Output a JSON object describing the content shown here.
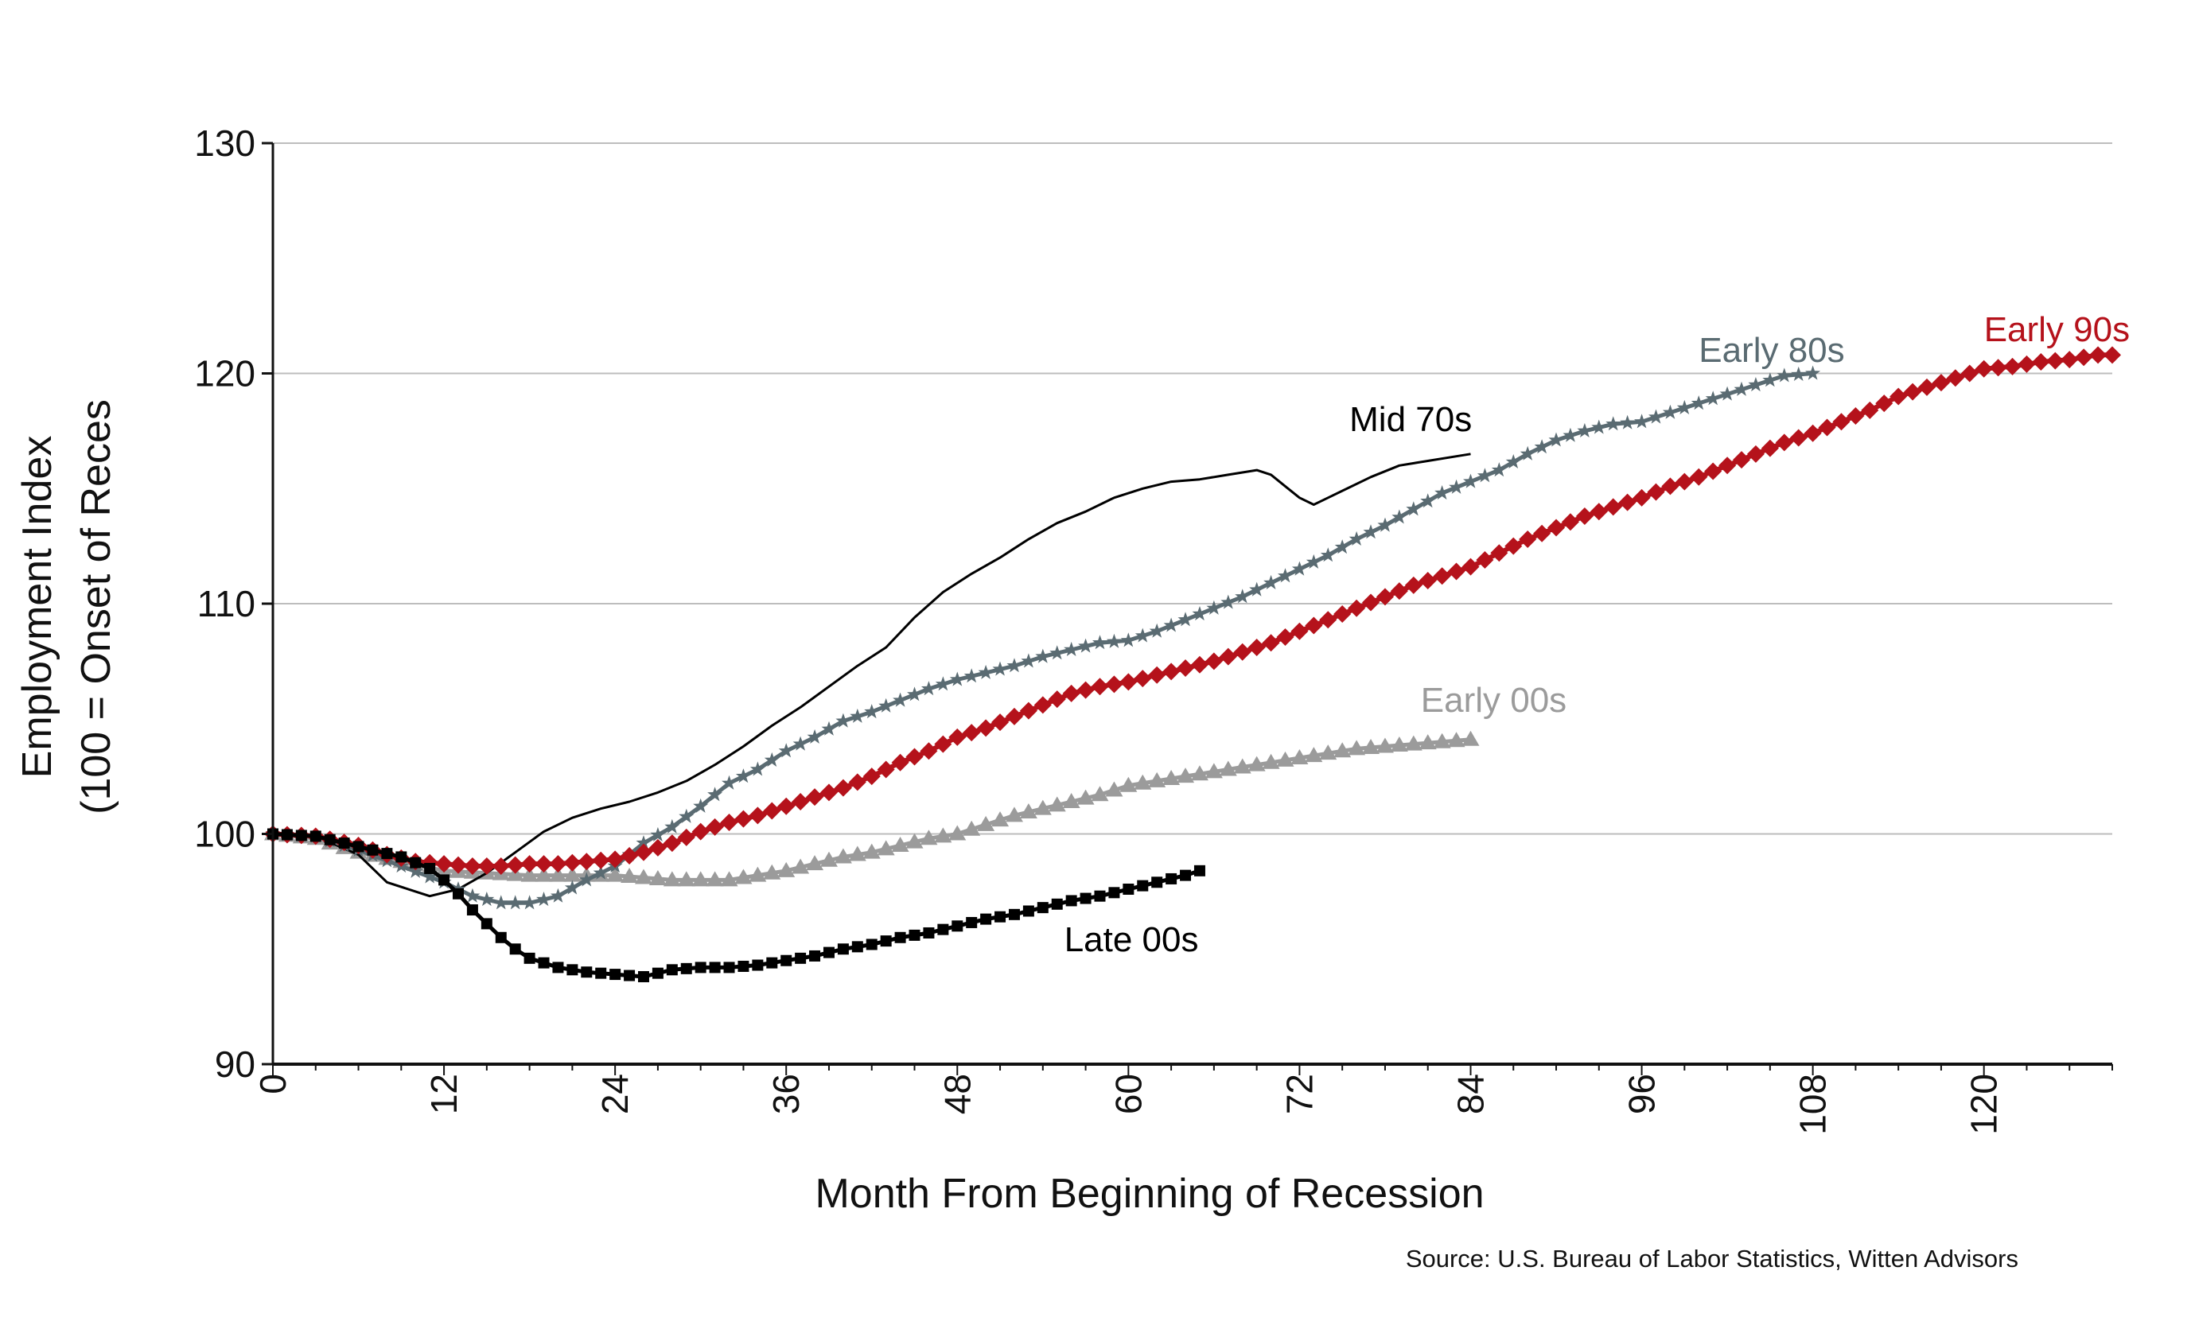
{
  "chart_data": {
    "type": "line",
    "title": "",
    "xlabel": "Month From Beginning of Recession",
    "ylabel_line1": "Employment Index",
    "ylabel_line2": "(100 = Onset of Reces",
    "source": "Source:  U.S. Bureau of Labor Statistics, Witten Advisors",
    "xlim": [
      0,
      129
    ],
    "ylim": [
      90,
      130
    ],
    "x_ticks": [
      "0",
      "12",
      "24",
      "36",
      "48",
      "60",
      "72",
      "84",
      "96",
      "108",
      "120"
    ],
    "y_ticks": [
      "90",
      "100",
      "110",
      "120",
      "130"
    ],
    "grid": "horizontal",
    "series": [
      {
        "name": "Mid 70s",
        "color": "#000000",
        "marker": "none",
        "points": [
          [
            0,
            100
          ],
          [
            3,
            99.9
          ],
          [
            6,
            99.1
          ],
          [
            8,
            97.9
          ],
          [
            10,
            97.5
          ],
          [
            11,
            97.3
          ],
          [
            13,
            97.6
          ],
          [
            15,
            98.3
          ],
          [
            17,
            99.2
          ],
          [
            19,
            100.1
          ],
          [
            21,
            100.7
          ],
          [
            23,
            101.1
          ],
          [
            25,
            101.4
          ],
          [
            27,
            101.8
          ],
          [
            29,
            102.3
          ],
          [
            31,
            103
          ],
          [
            33,
            103.8
          ],
          [
            35,
            104.7
          ],
          [
            37,
            105.5
          ],
          [
            39,
            106.4
          ],
          [
            41,
            107.3
          ],
          [
            43,
            108.1
          ],
          [
            45,
            109.4
          ],
          [
            47,
            110.5
          ],
          [
            49,
            111.3
          ],
          [
            51,
            112
          ],
          [
            53,
            112.8
          ],
          [
            55,
            113.5
          ],
          [
            57,
            114
          ],
          [
            59,
            114.6
          ],
          [
            61,
            115
          ],
          [
            63,
            115.3
          ],
          [
            65,
            115.4
          ],
          [
            67,
            115.6
          ],
          [
            69,
            115.8
          ],
          [
            70,
            115.6
          ],
          [
            71,
            115.1
          ],
          [
            72,
            114.6
          ],
          [
            73,
            114.3
          ],
          [
            74,
            114.6
          ],
          [
            75,
            114.9
          ],
          [
            77,
            115.5
          ],
          [
            79,
            116
          ],
          [
            81,
            116.2
          ],
          [
            83,
            116.4
          ],
          [
            84,
            116.5
          ]
        ]
      },
      {
        "name": "Early 80s",
        "color": "#5a6b72",
        "marker": "star",
        "points": [
          [
            0,
            100
          ],
          [
            3,
            99.9
          ],
          [
            6,
            99.3
          ],
          [
            9,
            98.6
          ],
          [
            12,
            97.9
          ],
          [
            14,
            97.3
          ],
          [
            16,
            97
          ],
          [
            18,
            97
          ],
          [
            20,
            97.3
          ],
          [
            22,
            98
          ],
          [
            24,
            98.6
          ],
          [
            26,
            99.6
          ],
          [
            28,
            100.3
          ],
          [
            30,
            101.2
          ],
          [
            32,
            102.2
          ],
          [
            34,
            102.8
          ],
          [
            36,
            103.6
          ],
          [
            38,
            104.2
          ],
          [
            40,
            104.9
          ],
          [
            42,
            105.3
          ],
          [
            44,
            105.8
          ],
          [
            46,
            106.3
          ],
          [
            48,
            106.7
          ],
          [
            50,
            107
          ],
          [
            52,
            107.3
          ],
          [
            54,
            107.7
          ],
          [
            56,
            108
          ],
          [
            58,
            108.3
          ],
          [
            60,
            108.4
          ],
          [
            62,
            108.8
          ],
          [
            64,
            109.3
          ],
          [
            66,
            109.8
          ],
          [
            68,
            110.3
          ],
          [
            70,
            110.9
          ],
          [
            72,
            111.5
          ],
          [
            74,
            112.1
          ],
          [
            76,
            112.8
          ],
          [
            78,
            113.4
          ],
          [
            80,
            114.1
          ],
          [
            82,
            114.8
          ],
          [
            84,
            115.3
          ],
          [
            86,
            115.8
          ],
          [
            88,
            116.5
          ],
          [
            90,
            117.1
          ],
          [
            92,
            117.5
          ],
          [
            94,
            117.8
          ],
          [
            96,
            117.9
          ],
          [
            98,
            118.3
          ],
          [
            100,
            118.7
          ],
          [
            102,
            119.1
          ],
          [
            104,
            119.5
          ],
          [
            106,
            119.9
          ],
          [
            108,
            120
          ]
        ]
      },
      {
        "name": "Early 90s",
        "color": "#b5121b",
        "marker": "diamond",
        "points": [
          [
            0,
            100
          ],
          [
            3,
            99.9
          ],
          [
            6,
            99.5
          ],
          [
            8,
            99.1
          ],
          [
            10,
            98.8
          ],
          [
            12,
            98.7
          ],
          [
            14,
            98.6
          ],
          [
            16,
            98.6
          ],
          [
            18,
            98.7
          ],
          [
            20,
            98.7
          ],
          [
            22,
            98.8
          ],
          [
            24,
            98.9
          ],
          [
            26,
            99.2
          ],
          [
            28,
            99.6
          ],
          [
            30,
            100.1
          ],
          [
            32,
            100.5
          ],
          [
            34,
            100.8
          ],
          [
            36,
            101.2
          ],
          [
            38,
            101.6
          ],
          [
            40,
            102
          ],
          [
            42,
            102.5
          ],
          [
            44,
            103.1
          ],
          [
            46,
            103.6
          ],
          [
            48,
            104.2
          ],
          [
            50,
            104.6
          ],
          [
            52,
            105.1
          ],
          [
            54,
            105.6
          ],
          [
            56,
            106.1
          ],
          [
            58,
            106.4
          ],
          [
            60,
            106.6
          ],
          [
            62,
            106.9
          ],
          [
            64,
            107.2
          ],
          [
            66,
            107.5
          ],
          [
            68,
            107.9
          ],
          [
            70,
            108.3
          ],
          [
            72,
            108.8
          ],
          [
            74,
            109.3
          ],
          [
            76,
            109.8
          ],
          [
            78,
            110.3
          ],
          [
            80,
            110.8
          ],
          [
            82,
            111.2
          ],
          [
            84,
            111.6
          ],
          [
            86,
            112.2
          ],
          [
            88,
            112.8
          ],
          [
            90,
            113.3
          ],
          [
            92,
            113.8
          ],
          [
            94,
            114.2
          ],
          [
            96,
            114.6
          ],
          [
            98,
            115.1
          ],
          [
            100,
            115.5
          ],
          [
            102,
            116
          ],
          [
            104,
            116.5
          ],
          [
            106,
            117
          ],
          [
            108,
            117.4
          ],
          [
            110,
            117.9
          ],
          [
            112,
            118.4
          ],
          [
            114,
            119
          ],
          [
            116,
            119.4
          ],
          [
            118,
            119.8
          ],
          [
            120,
            120.2
          ],
          [
            122,
            120.3
          ],
          [
            124,
            120.5
          ],
          [
            126,
            120.6
          ],
          [
            128,
            120.8
          ],
          [
            129,
            120.8
          ]
        ]
      },
      {
        "name": "Early 00s",
        "color": "#9b9b9b",
        "marker": "triangle",
        "points": [
          [
            0,
            100
          ],
          [
            3,
            99.8
          ],
          [
            6,
            99.2
          ],
          [
            9,
            98.8
          ],
          [
            12,
            98.4
          ],
          [
            15,
            98.3
          ],
          [
            18,
            98.2
          ],
          [
            21,
            98.2
          ],
          [
            24,
            98.2
          ],
          [
            26,
            98.1
          ],
          [
            28,
            98
          ],
          [
            30,
            98
          ],
          [
            32,
            98
          ],
          [
            34,
            98.2
          ],
          [
            36,
            98.4
          ],
          [
            38,
            98.7
          ],
          [
            40,
            99
          ],
          [
            42,
            99.2
          ],
          [
            44,
            99.5
          ],
          [
            46,
            99.8
          ],
          [
            48,
            100
          ],
          [
            50,
            100.4
          ],
          [
            52,
            100.8
          ],
          [
            54,
            101.1
          ],
          [
            56,
            101.4
          ],
          [
            58,
            101.7
          ],
          [
            60,
            102.1
          ],
          [
            62,
            102.3
          ],
          [
            64,
            102.5
          ],
          [
            66,
            102.7
          ],
          [
            68,
            102.9
          ],
          [
            70,
            103.1
          ],
          [
            72,
            103.3
          ],
          [
            74,
            103.5
          ],
          [
            76,
            103.7
          ],
          [
            78,
            103.8
          ],
          [
            80,
            103.9
          ],
          [
            82,
            104
          ],
          [
            84,
            104.1
          ]
        ]
      },
      {
        "name": "Late 00s",
        "color": "#000000",
        "marker": "square",
        "points": [
          [
            0,
            100
          ],
          [
            3,
            99.9
          ],
          [
            5,
            99.6
          ],
          [
            7,
            99.3
          ],
          [
            9,
            99
          ],
          [
            11,
            98.5
          ],
          [
            12,
            98
          ],
          [
            13,
            97.4
          ],
          [
            14,
            96.7
          ],
          [
            15,
            96.1
          ],
          [
            16,
            95.5
          ],
          [
            17,
            95
          ],
          [
            18,
            94.6
          ],
          [
            20,
            94.2
          ],
          [
            22,
            94
          ],
          [
            24,
            93.9
          ],
          [
            26,
            93.8
          ],
          [
            28,
            94.1
          ],
          [
            30,
            94.2
          ],
          [
            32,
            94.2
          ],
          [
            34,
            94.3
          ],
          [
            36,
            94.5
          ],
          [
            38,
            94.7
          ],
          [
            40,
            95
          ],
          [
            42,
            95.2
          ],
          [
            44,
            95.5
          ],
          [
            46,
            95.7
          ],
          [
            48,
            96
          ],
          [
            50,
            96.3
          ],
          [
            52,
            96.5
          ],
          [
            54,
            96.8
          ],
          [
            56,
            97.1
          ],
          [
            58,
            97.3
          ],
          [
            60,
            97.6
          ],
          [
            62,
            97.9
          ],
          [
            64,
            98.2
          ],
          [
            65,
            98.4
          ]
        ]
      }
    ],
    "labels": [
      {
        "series": "Mid 70s",
        "text": "Mid 70s",
        "x": 75.5,
        "y": 117.5
      },
      {
        "series": "Early 80s",
        "text": "Early 80s",
        "x": 100,
        "y": 120.5
      },
      {
        "series": "Early 90s",
        "text": "Early 90s",
        "x": 120,
        "y": 121.4
      },
      {
        "series": "Early 00s",
        "text": "Early 00s",
        "x": 80.5,
        "y": 105.3
      },
      {
        "series": "Late 00s",
        "text": "Late 00s",
        "x": 55.5,
        "y": 94.9
      }
    ]
  }
}
